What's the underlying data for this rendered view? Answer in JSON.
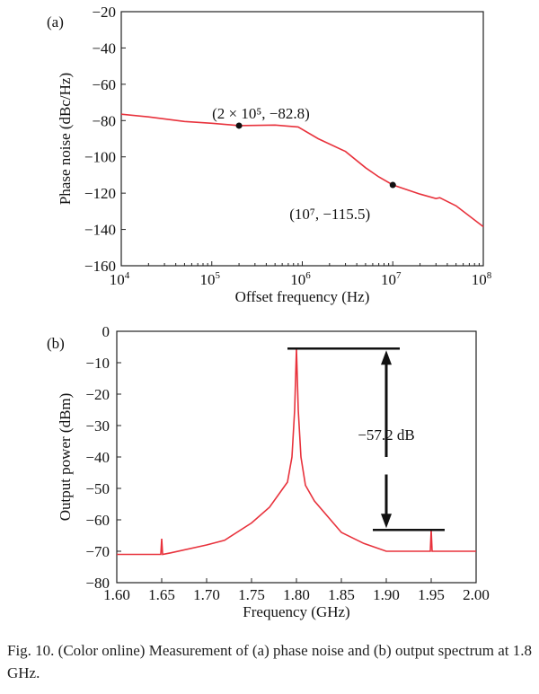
{
  "chart_data": [
    {
      "type": "line",
      "panel_label": "(a)",
      "xlabel": "Offset frequency (Hz)",
      "ylabel": "Phase noise (dBc/Hz)",
      "xscale": "log",
      "xlim": [
        10000,
        100000000
      ],
      "ylim": [
        -160,
        -20
      ],
      "xticks": [
        {
          "base": "10",
          "exp": "4"
        },
        {
          "base": "10",
          "exp": "5"
        },
        {
          "base": "10",
          "exp": "6"
        },
        {
          "base": "10",
          "exp": "7"
        },
        {
          "base": "10",
          "exp": "8"
        }
      ],
      "yticks": [
        "−20",
        "−40",
        "−60",
        "−80",
        "−100",
        "−120",
        "−140",
        "−160"
      ],
      "grid": false,
      "line_color": "#e8323c",
      "x": [
        10000,
        20000,
        50000,
        100000,
        200000,
        500000,
        900000,
        1500000,
        3000000,
        5000000,
        7000000,
        10000000,
        20000000,
        30000000,
        33000000,
        50000000,
        100000000
      ],
      "y": [
        -76.5,
        -78,
        -80.5,
        -81.5,
        -82.8,
        -82.5,
        -83.5,
        -90,
        -97,
        -106,
        -111,
        -115.5,
        -120.5,
        -123,
        -122.5,
        -127,
        -138.5
      ],
      "annotations": [
        {
          "x": 200000,
          "y": -82.8,
          "text": "(2 × 10⁵, −82.8)"
        },
        {
          "x": 10000000,
          "y": -115.5,
          "text": "(10⁷, −115.5)"
        }
      ]
    },
    {
      "type": "line",
      "panel_label": "(b)",
      "xlabel": "Frequency (GHz)",
      "ylabel": "Output power (dBm)",
      "xlim": [
        1.6,
        2.0
      ],
      "ylim": [
        -80,
        0
      ],
      "xticks": [
        "1.60",
        "1.65",
        "1.70",
        "1.75",
        "1.80",
        "1.85",
        "1.90",
        "1.95",
        "2.00"
      ],
      "yticks": [
        "0",
        "−10",
        "−20",
        "−30",
        "−40",
        "−50",
        "−60",
        "−70",
        "−80"
      ],
      "grid": false,
      "line_color": "#e8323c",
      "x": [
        1.6,
        1.64,
        1.649,
        1.65,
        1.651,
        1.66,
        1.7,
        1.72,
        1.75,
        1.77,
        1.79,
        1.795,
        1.798,
        1.8,
        1.802,
        1.805,
        1.81,
        1.82,
        1.85,
        1.875,
        1.9,
        1.949,
        1.95,
        1.951,
        1.97,
        2.0
      ],
      "y": [
        -71,
        -71,
        -71,
        -66,
        -71,
        -70.5,
        -68,
        -66.5,
        -61,
        -56,
        -48,
        -40,
        -25,
        -5.5,
        -25,
        -40,
        -49,
        -54,
        -64,
        -67.5,
        -70,
        -70,
        -63.2,
        -70,
        -70,
        -70
      ],
      "annotations": [
        {
          "text": "−57.2 dB",
          "top": -5.5,
          "bottom": -63.2
        }
      ]
    }
  ],
  "caption": "Fig. 10. (Color online) Measurement of (a) phase noise and (b) output spectrum at 1.8 GHz."
}
